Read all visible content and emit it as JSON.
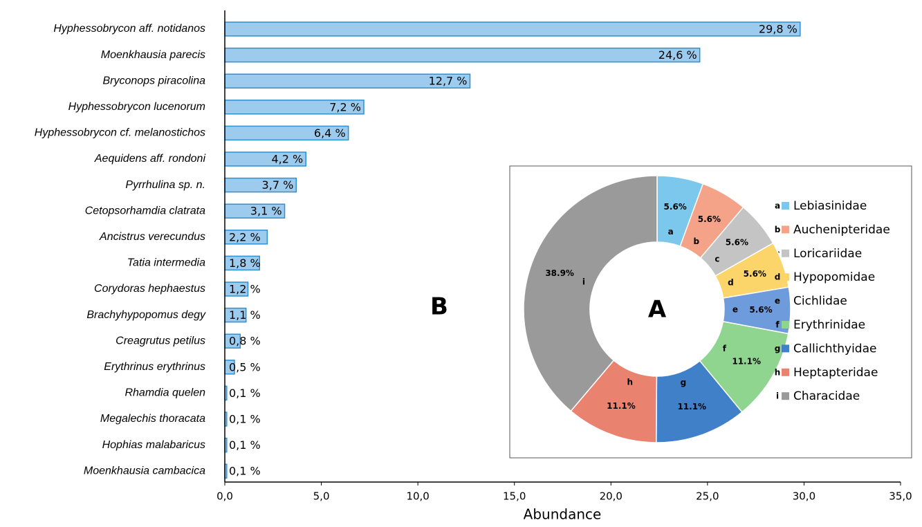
{
  "chart_data": [
    {
      "type": "bar",
      "orientation": "horizontal",
      "label": "B",
      "categories": [
        "Hyphessobrycon aff. notidanos",
        "Moenkhausia parecis",
        "Bryconops piracolina",
        "Hyphessobrycon lucenorum",
        "Hyphessobrycon cf. melanostichos",
        "Aequidens aff. rondoni",
        "Pyrrhulina sp. n.",
        "Cetopsorhamdia clatrata",
        "Ancistrus verecundus",
        "Tatia intermedia",
        "Corydoras hephaestus",
        "Brachyhypopomus degy",
        "Creagrutus petilus",
        "Erythrinus erythrinus",
        "Rhamdia quelen",
        "Megalechis thoracata",
        "Hophias malabaricus",
        "Moenkhausia cambacica"
      ],
      "values": [
        29.8,
        24.6,
        12.7,
        7.2,
        6.4,
        4.2,
        3.7,
        3.1,
        2.2,
        1.8,
        1.2,
        1.1,
        0.8,
        0.5,
        0.1,
        0.1,
        0.1,
        0.1
      ],
      "value_labels": [
        "29,8 %",
        "24,6 %",
        "12,7 %",
        "7,2 %",
        "6,4 %",
        "4,2 %",
        "3,7 %",
        "3,1 %",
        "2,2 %",
        "1,8 %",
        "1,2 %",
        "1,1 %",
        "0,8 %",
        "0,5 %",
        "0,1 %",
        "0,1 %",
        "0,1 %",
        "0,1 %"
      ],
      "color": "#9ccbee",
      "xlabel": "Abundance",
      "xlim": [
        0,
        35
      ],
      "xticks": [
        {
          "value": 0,
          "label": "0,0"
        },
        {
          "value": 5,
          "label": "5,0"
        },
        {
          "value": 10,
          "label": "10,0"
        },
        {
          "value": 15,
          "label": "15,0"
        },
        {
          "value": 20,
          "label": "20,0"
        },
        {
          "value": 25,
          "label": "25,0"
        },
        {
          "value": 30,
          "label": "30,0"
        },
        {
          "value": 35,
          "label": "35,0"
        }
      ]
    },
    {
      "type": "pie",
      "donut": true,
      "label": "A",
      "categories": [
        "Lebiasinidae",
        "Auchenipteridae",
        "Loricariidae",
        "Hypopomidae",
        "Cichlidae",
        "Erythrinidae",
        "Callichthyidae",
        "Heptapteridae",
        "Characidae"
      ],
      "letters": [
        "a",
        "b",
        "c",
        "d",
        "e",
        "f",
        "g",
        "h",
        "i"
      ],
      "values": [
        5.6,
        5.6,
        5.6,
        5.6,
        5.6,
        11.1,
        11.1,
        11.1,
        38.9
      ],
      "value_labels": [
        "5.6%",
        "5.6%",
        "5.6%",
        "5.6%",
        "5.6%",
        "11.1%",
        "11.1%",
        "11.1%",
        "38.9%"
      ],
      "colors": [
        "#7cc8ec",
        "#f4a388",
        "#c4c4c4",
        "#fbd56a",
        "#6e9bdc",
        "#8fd48f",
        "#3f80c8",
        "#ea8270",
        "#9a9a9a"
      ]
    }
  ]
}
